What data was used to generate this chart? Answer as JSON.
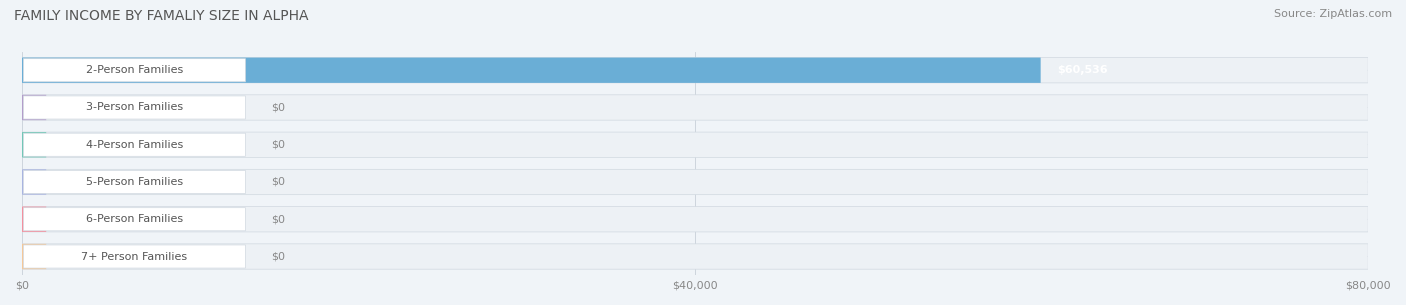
{
  "title": "FAMILY INCOME BY FAMALIY SIZE IN ALPHA",
  "source": "Source: ZipAtlas.com",
  "categories": [
    "2-Person Families",
    "3-Person Families",
    "4-Person Families",
    "5-Person Families",
    "6-Person Families",
    "7+ Person Families"
  ],
  "values": [
    60536,
    0,
    0,
    0,
    0,
    0
  ],
  "bar_colors": [
    "#6aaed6",
    "#b39dca",
    "#72c7b6",
    "#a9b4e0",
    "#f4909e",
    "#f5c899"
  ],
  "xlim": [
    0,
    80000
  ],
  "xticks": [
    0,
    40000,
    80000
  ],
  "xtick_labels": [
    "$0",
    "$40,000",
    "$80,000"
  ],
  "value_labels": [
    "$60,536",
    "$0",
    "$0",
    "$0",
    "$0",
    "$0"
  ],
  "background_color": "#f0f4f8",
  "bar_bg_color": "#e8edf2",
  "title_fontsize": 10,
  "source_fontsize": 8,
  "label_fontsize": 8,
  "tick_fontsize": 8
}
